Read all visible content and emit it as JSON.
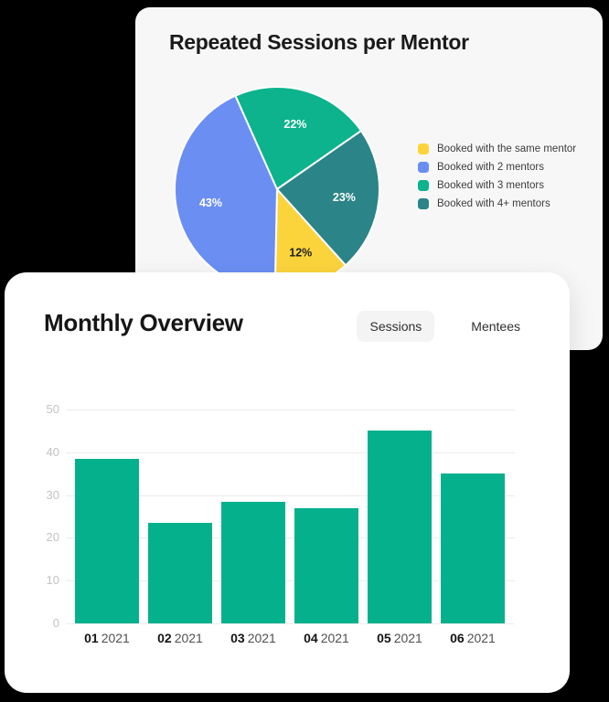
{
  "page": {
    "background": "#000000"
  },
  "pie_card": {
    "title": "Repeated Sessions per Mentor",
    "background": "#f7f7f7"
  },
  "overview_card": {
    "title": "Monthly Overview",
    "background": "#ffffff",
    "tabs": [
      {
        "label": "Sessions",
        "active": true
      },
      {
        "label": "Mentees",
        "active": false
      }
    ]
  },
  "chart_data": [
    {
      "type": "pie",
      "title": "Repeated Sessions per Mentor",
      "unit": "percent",
      "start_angle_deg": 138,
      "direction": "clockwise",
      "legend_position": "right",
      "slices": [
        {
          "label": "Booked with the same mentor",
          "value": 12,
          "color": "#fbd43c",
          "label_color": "#1f1f1f"
        },
        {
          "label": "Booked with 2 mentors",
          "value": 43,
          "color": "#6b8ef3",
          "label_color": "#ffffff"
        },
        {
          "label": "Booked with 3 mentors",
          "value": 22,
          "color": "#0cb38c",
          "label_color": "#ffffff"
        },
        {
          "label": "Booked with 4+ mentors",
          "value": 23,
          "color": "#2b8487",
          "label_color": "#ffffff"
        }
      ]
    },
    {
      "type": "bar",
      "title": "Monthly Overview",
      "active_series": "Sessions",
      "categories": [
        {
          "month": "01",
          "year": "2021"
        },
        {
          "month": "02",
          "year": "2021"
        },
        {
          "month": "03",
          "year": "2021"
        },
        {
          "month": "04",
          "year": "2021"
        },
        {
          "month": "05",
          "year": "2021"
        },
        {
          "month": "06",
          "year": "2021"
        }
      ],
      "values": [
        38.5,
        23.5,
        28.5,
        27,
        45,
        35
      ],
      "bar_color": "#05b18c",
      "ylim": [
        0,
        50
      ],
      "yticks": [
        0,
        10,
        20,
        30,
        40,
        50
      ],
      "grid": true,
      "grid_color": "#ececec",
      "tick_color": "#c3c3c3"
    }
  ]
}
